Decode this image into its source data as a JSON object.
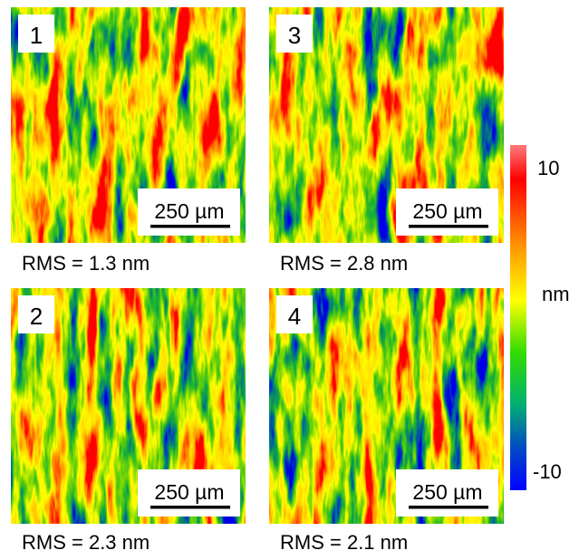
{
  "panels": [
    {
      "label": "1",
      "scale_bar": "250 µm",
      "rms": "RMS = 1.3 nm"
    },
    {
      "label": "3",
      "scale_bar": "250 µm",
      "rms": "RMS = 2.8 nm"
    },
    {
      "label": "2",
      "scale_bar": "250 µm",
      "rms": "RMS = 2.3 nm"
    },
    {
      "label": "4",
      "scale_bar": "250 µm",
      "rms": "RMS = 2.1 nm"
    }
  ],
  "colorbar": {
    "max_label": "10",
    "unit": "nm",
    "min_label": "-10"
  }
}
